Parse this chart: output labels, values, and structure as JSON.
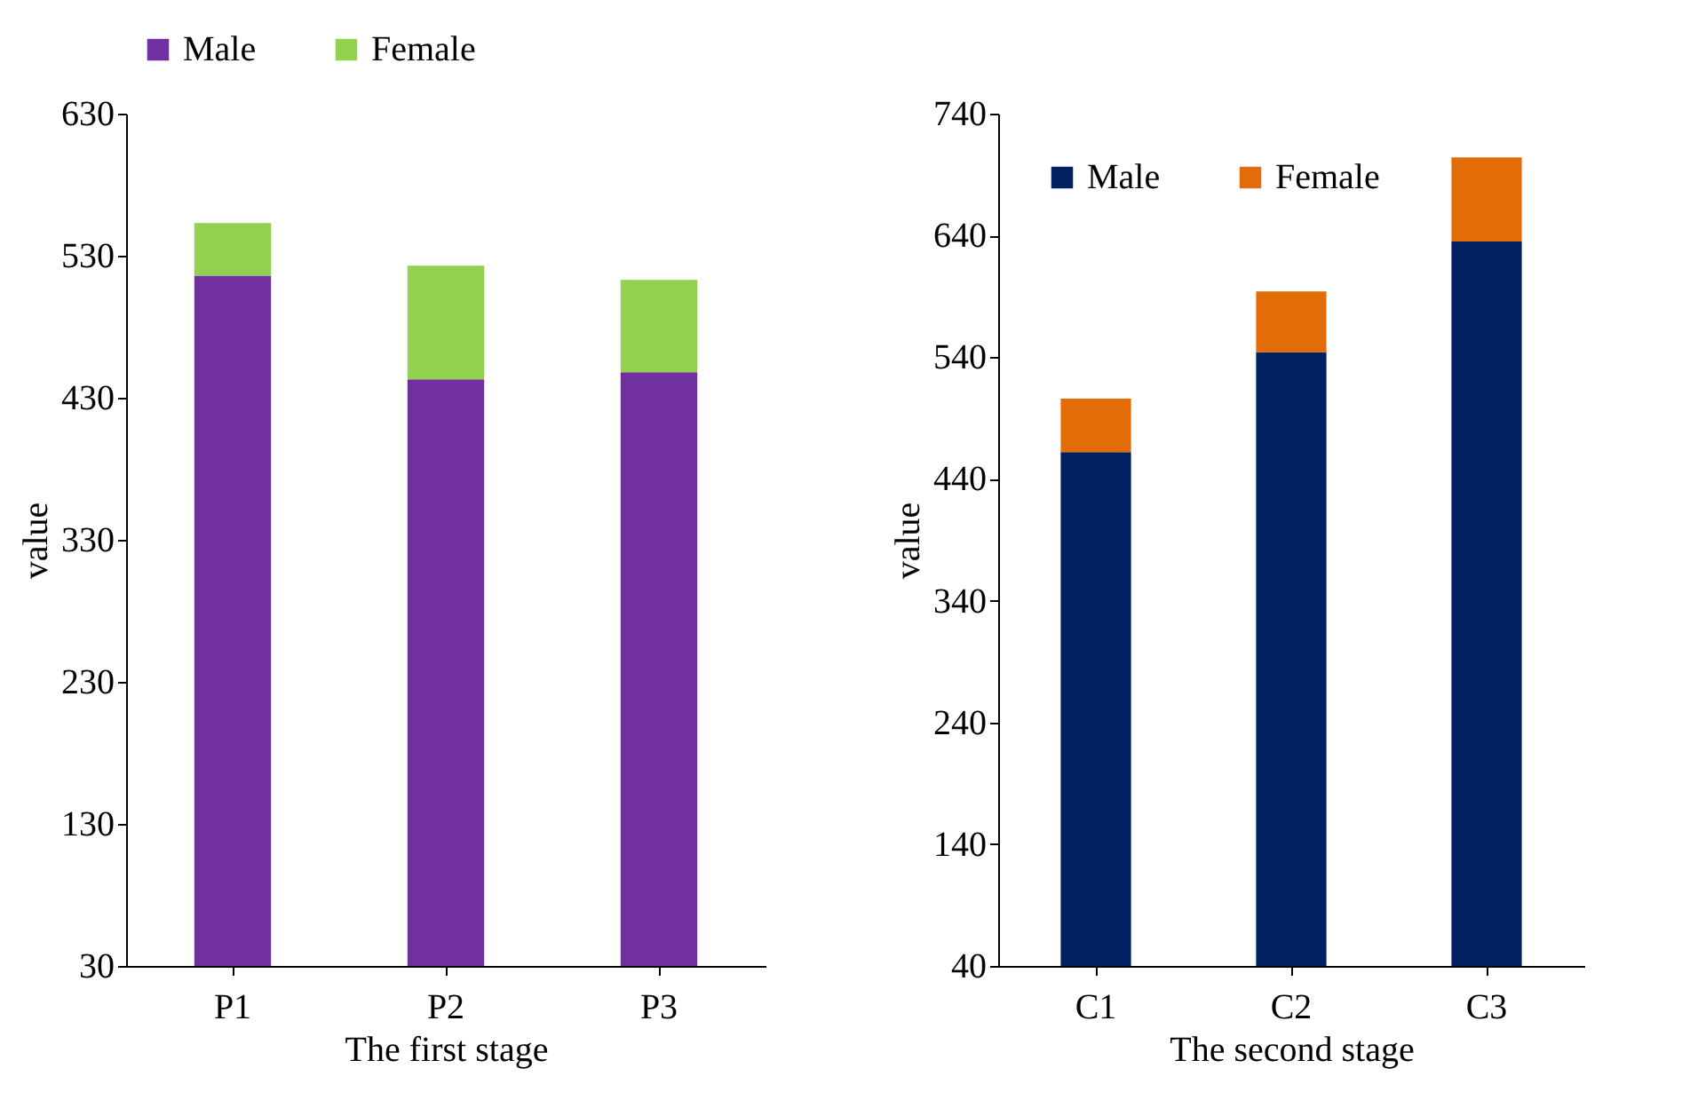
{
  "chart_data": [
    {
      "type": "bar",
      "stacked": true,
      "xlabel": "The first stage",
      "ylabel": "value",
      "categories": [
        "P1",
        "P2",
        "P3"
      ],
      "ylim": [
        30,
        630
      ],
      "yticks": [
        30,
        130,
        230,
        330,
        430,
        530,
        630
      ],
      "legend": "top",
      "series": [
        {
          "name": "Male",
          "color": "#7030a0",
          "values": [
            516,
            443,
            448
          ]
        },
        {
          "name": "Female",
          "color": "#92d050",
          "values": [
            37,
            80,
            65
          ]
        }
      ]
    },
    {
      "type": "bar",
      "stacked": true,
      "xlabel": "The second stage",
      "ylabel": "value",
      "categories": [
        "C1",
        "C2",
        "C3"
      ],
      "ylim": [
        40,
        740
      ],
      "yticks": [
        40,
        140,
        240,
        340,
        440,
        540,
        640,
        740
      ],
      "legend": "top left",
      "series": [
        {
          "name": "Male",
          "color": "#002060",
          "values": [
            462,
            544,
            635
          ]
        },
        {
          "name": "Female",
          "color": "#e36c09",
          "values": [
            44,
            50,
            69
          ]
        }
      ]
    }
  ]
}
